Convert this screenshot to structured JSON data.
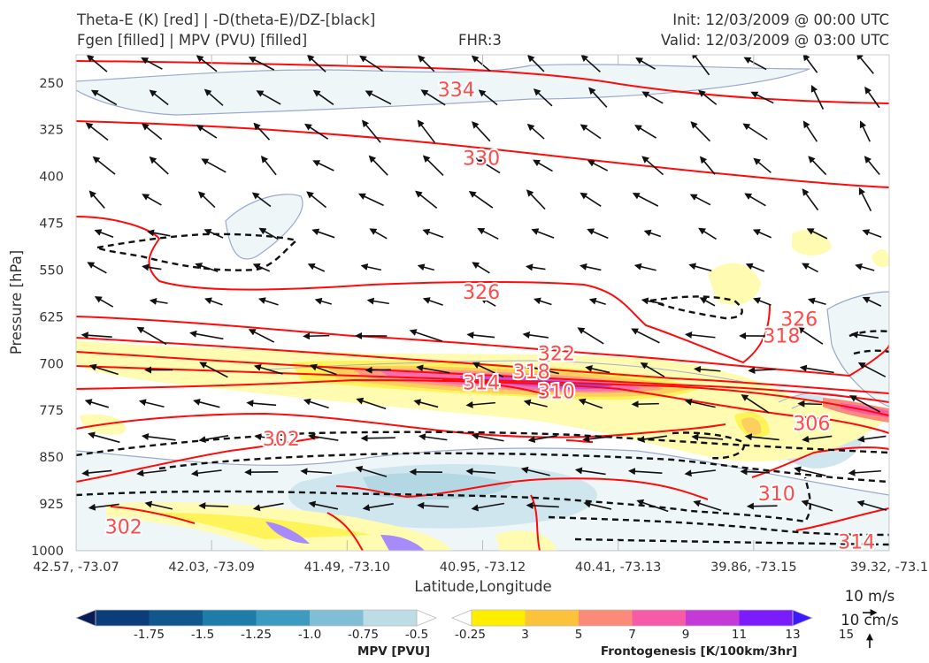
{
  "header": {
    "line1_left": "Theta-E (K) [red] | -D(theta-E)/DZ-[black]",
    "line2_left": "Fgen [filled] | MPV (PVU) [filled]",
    "fhr": "FHR:3",
    "init": "Init: 12/03/2009 @ 00:00 UTC",
    "valid": "Valid: 12/03/2009 @ 03:00 UTC"
  },
  "chart_data": {
    "type": "cross-section",
    "xlabel": "Latitude,Longitude",
    "ylabel": "Pressure [hPa]",
    "x_ticks": [
      "42.57, -73.07",
      "42.03, -73.09",
      "41.49, -73.10",
      "40.95, -73.12",
      "40.41, -73.13",
      "39.86, -73.15",
      "39.32, -73.1"
    ],
    "y_ticks": [
      250,
      325,
      400,
      475,
      550,
      625,
      700,
      775,
      850,
      925,
      1000
    ],
    "y_range": [
      205,
      1000
    ],
    "theta_e_contour_labels": [
      {
        "value": "334",
        "lat": 41.05,
        "p": 260
      },
      {
        "value": "330",
        "lat": 40.95,
        "p": 370
      },
      {
        "value": "326",
        "lat": 40.95,
        "p": 585
      },
      {
        "value": "322",
        "lat": 40.65,
        "p": 683
      },
      {
        "value": "318",
        "lat": 40.75,
        "p": 712
      },
      {
        "value": "314",
        "lat": 40.95,
        "p": 730
      },
      {
        "value": "310",
        "lat": 40.65,
        "p": 744
      },
      {
        "value": "302",
        "lat": 41.75,
        "p": 820
      },
      {
        "value": "302",
        "lat": 42.38,
        "p": 961
      },
      {
        "value": "310",
        "lat": 39.77,
        "p": 908
      },
      {
        "value": "314",
        "lat": 39.45,
        "p": 985
      },
      {
        "value": "306",
        "lat": 39.63,
        "p": 795
      },
      {
        "value": "326",
        "lat": 39.68,
        "p": 628
      },
      {
        "value": "318",
        "lat": 39.75,
        "p": 655
      }
    ],
    "mpv_colorbar": {
      "title": "MPV [PVU]",
      "ticks": [
        "-1.75",
        "-1.5",
        "-1.25",
        "-1.0",
        "-0.75",
        "-0.5",
        "-0.25"
      ],
      "colors": [
        "#081d58",
        "#0b3d7a",
        "#12578c",
        "#1d7da8",
        "#3d9bc0",
        "#7fbed5",
        "#bcdde6",
        "#ffffff"
      ]
    },
    "fgen_colorbar": {
      "title": "Frontogenesis [K/100km/3hr]",
      "ticks": [
        "3",
        "5",
        "7",
        "9",
        "11",
        "13",
        "15"
      ],
      "colors": [
        "#ffffff",
        "#ffee00",
        "#fcc23a",
        "#fb8a78",
        "#f75ba6",
        "#c43ad8",
        "#7a1dfa",
        "#3a1aff"
      ]
    },
    "vector_reference": {
      "horizontal": "10 m/s",
      "vertical": "10 cm/s"
    }
  }
}
